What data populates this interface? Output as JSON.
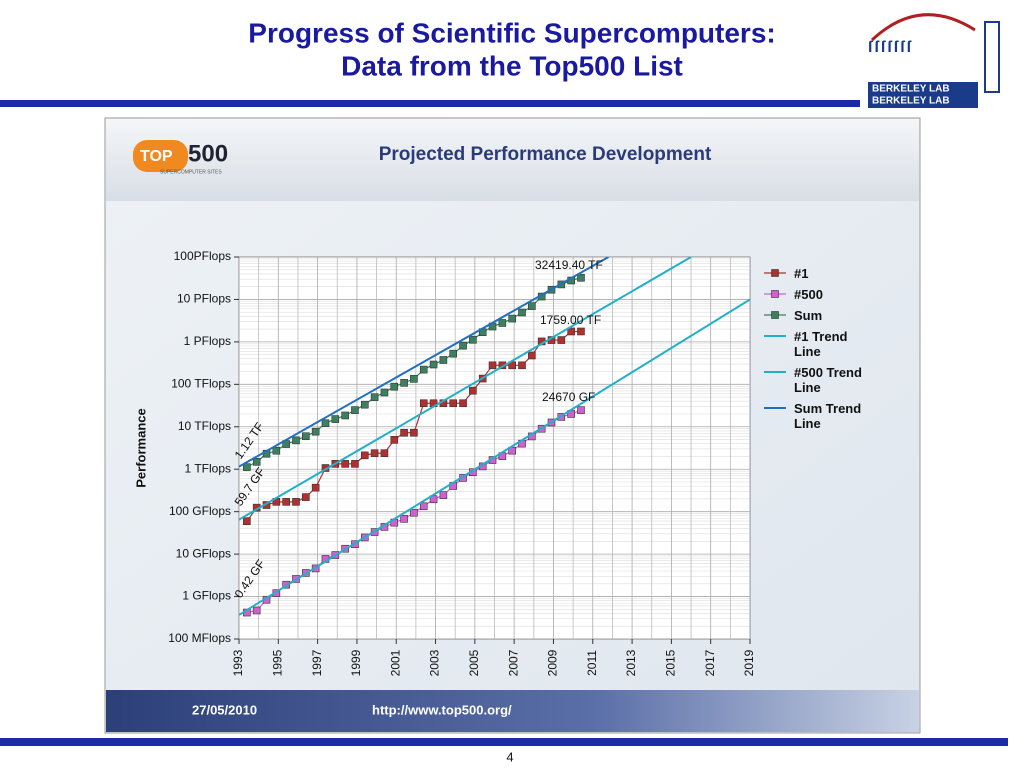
{
  "slide": {
    "title_lines": [
      "Progress of Scientific Supercomputers:",
      "Data from the Top500 List"
    ],
    "logo_lines": [
      "BERKELEY LAB",
      "BERKELEY LAB"
    ],
    "page_number": "4"
  },
  "banner": {
    "logo_top": "TOP",
    "logo_num": "500",
    "logo_sub": "SUPERCOMPUTER SITES",
    "date": "27/05/2010",
    "url": "http://www.top500.org/"
  },
  "chart_data": {
    "type": "line",
    "title": "Projected Performance Development",
    "y_label": "Performance",
    "log_y": true,
    "grid": true,
    "xlim": [
      1993,
      2019
    ],
    "xticks": [
      1993,
      1995,
      1997,
      1999,
      2001,
      2003,
      2005,
      2007,
      2009,
      2011,
      2013,
      2015,
      2017,
      2019
    ],
    "ylim": [
      0.1,
      100000000
    ],
    "yticks": [
      {
        "value": 0.1,
        "label": "100 MFlops"
      },
      {
        "value": 1,
        "label": "1 GFlops"
      },
      {
        "value": 10,
        "label": "10 GFlops"
      },
      {
        "value": 100,
        "label": "100 GFlops"
      },
      {
        "value": 1000,
        "label": "1 TFlops"
      },
      {
        "value": 10000,
        "label": "10 TFlops"
      },
      {
        "value": 100000,
        "label": "100 TFlops"
      },
      {
        "value": 1000000,
        "label": "1 PFlops"
      },
      {
        "value": 10000000,
        "label": "10 PFlops"
      },
      {
        "value": 100000000,
        "label": "100PFlops"
      }
    ],
    "x": [
      1993.4,
      1993.9,
      1994.4,
      1994.9,
      1995.4,
      1995.9,
      1996.4,
      1996.9,
      1997.4,
      1997.9,
      1998.4,
      1998.9,
      1999.4,
      1999.9,
      2000.4,
      2000.9,
      2001.4,
      2001.9,
      2002.4,
      2002.9,
      2003.4,
      2003.9,
      2004.4,
      2004.9,
      2005.4,
      2005.9,
      2006.4,
      2006.9,
      2007.4,
      2007.9,
      2008.4,
      2008.9,
      2009.4,
      2009.9,
      2010.4
    ],
    "series": [
      {
        "name": "#1",
        "color": "#b03030",
        "values": [
          59.7,
          124.5,
          143.4,
          170.4,
          170.4,
          170.4,
          220.4,
          368.2,
          1068,
          1338,
          1338,
          1338,
          2121,
          2379,
          2379,
          4938,
          7226,
          7226,
          35860,
          35860,
          35860,
          35860,
          35860,
          70720,
          136800,
          280600,
          280600,
          280600,
          280600,
          478200,
          1026000,
          1105000,
          1105000,
          1759000,
          1759000
        ]
      },
      {
        "name": "#500",
        "color": "#d060d0",
        "values": [
          0.42,
          0.47,
          0.84,
          1.2,
          1.9,
          2.6,
          3.6,
          4.6,
          7.7,
          9.5,
          13.4,
          17.1,
          24.7,
          33.1,
          43.8,
          55.1,
          67.8,
          94.3,
          134,
          196,
          245,
          403,
          624,
          851,
          1166,
          1646,
          2026,
          2737,
          4005,
          5929,
          9000,
          12640,
          17090,
          20050,
          24670
        ]
      },
      {
        "name": "Sum",
        "color": "#3c8060",
        "values": [
          1120,
          1493,
          2317,
          2732,
          3916,
          4776,
          5988,
          7672,
          12163,
          15182,
          18463,
          24667,
          33144,
          49879,
          64096,
          88165,
          108400,
          134700,
          222200,
          293200,
          374900,
          528100,
          813100,
          1127000,
          1690000,
          2300000,
          2790000,
          3540000,
          4920000,
          6970000,
          11700000,
          16950000,
          22600000,
          27950000,
          32419400
        ]
      },
      {
        "name": "#1 Trend Line",
        "color": "#20b0c8",
        "trend": true,
        "x": [
          1993,
          2016
        ],
        "values": [
          65,
          100000000
        ]
      },
      {
        "name": "#500 Trend Line",
        "color": "#20b0c8",
        "trend": true,
        "x": [
          1993,
          2019
        ],
        "values": [
          0.37,
          10000000
        ]
      },
      {
        "name": "Sum Trend Line",
        "color": "#2070c0",
        "trend": true,
        "x": [
          1993,
          2011.8
        ],
        "values": [
          1150,
          100000000
        ]
      }
    ],
    "annotations": [
      "32419.40 TF",
      "1759.00 TF",
      "24670 GF",
      "1.12 TF",
      "59.7 GF",
      "0.42 GF"
    ]
  }
}
